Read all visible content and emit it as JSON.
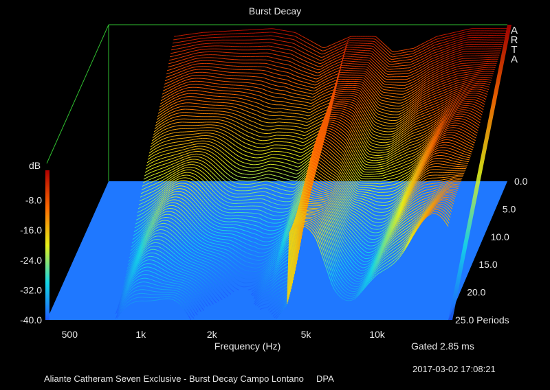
{
  "chart_data": {
    "type": "waterfall",
    "title": "Burst Decay",
    "xlabel": "Frequency (Hz)",
    "zlabel": "dB",
    "y_unit_label": "Periods",
    "x_scale": "log",
    "xlim": [
      400,
      20000
    ],
    "x_ticks": [
      {
        "value": 500,
        "label": "500"
      },
      {
        "value": 1000,
        "label": "1k"
      },
      {
        "value": 2000,
        "label": "2k"
      },
      {
        "value": 5000,
        "label": "5k"
      },
      {
        "value": 10000,
        "label": "10k"
      }
    ],
    "z_ticks": [
      "-8.0",
      "-16.0",
      "-24.0",
      "-32.0",
      "-40.0"
    ],
    "z_tick_values": [
      -8,
      -16,
      -24,
      -32,
      -40
    ],
    "zlim": [
      -40,
      0
    ],
    "y_ticks": [
      "0.0",
      "5.0",
      "10.0",
      "15.0",
      "20.0",
      "25.0 Periods"
    ],
    "y_tick_values": [
      0,
      5,
      10,
      15,
      20,
      25
    ],
    "ylim": [
      0,
      25
    ],
    "gated_note": "Gated 2.85 ms",
    "initial_response_db": [
      {
        "f": 760,
        "db": -3
      },
      {
        "f": 1000,
        "db": -2
      },
      {
        "f": 1400,
        "db": -1.5
      },
      {
        "f": 2000,
        "db": -1
      },
      {
        "f": 2500,
        "db": -2
      },
      {
        "f": 3300,
        "db": -6
      },
      {
        "f": 4300,
        "db": -3
      },
      {
        "f": 5500,
        "db": -3
      },
      {
        "f": 6500,
        "db": -7
      },
      {
        "f": 8000,
        "db": -6
      },
      {
        "f": 10000,
        "db": -3
      },
      {
        "f": 14000,
        "db": -1
      },
      {
        "f": 20000,
        "db": -1
      }
    ],
    "floor_db": -40
  },
  "footer": {
    "description": "Aliante Catheram Seven Exclusive - Burst Decay Campo Lontano",
    "tag": "DPA",
    "timestamp": "2017-03-02  17:08:21"
  },
  "brand": [
    "A",
    "R",
    "T",
    "A"
  ],
  "colors": {
    "background": "#000000",
    "floor": "#1f78ff",
    "frame": "#30c030",
    "text": "#e6e6e6"
  }
}
